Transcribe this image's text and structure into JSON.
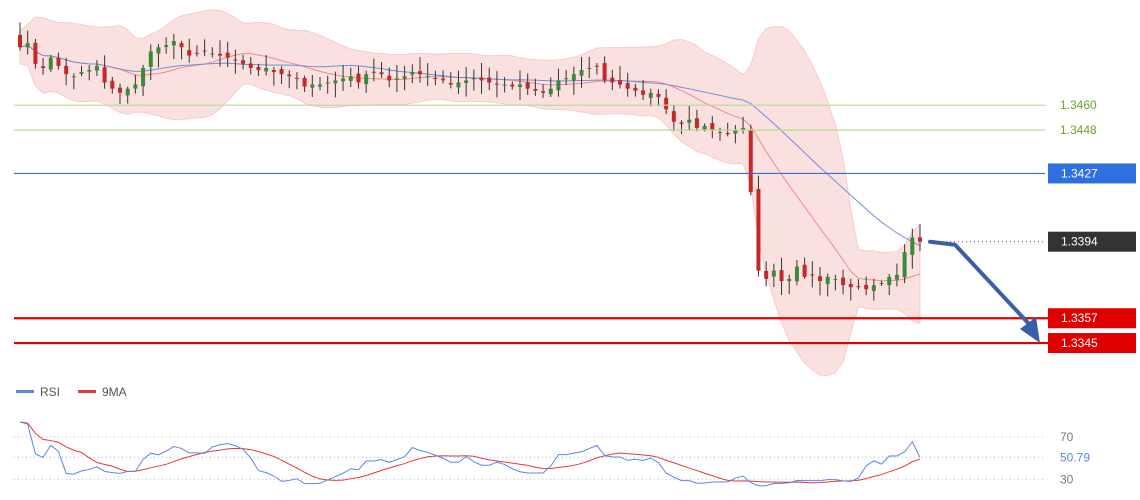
{
  "chart_data": [
    {
      "type": "candlestick",
      "y_range": [
        1.3331,
        1.3507
      ],
      "overlays": [
        "bollinger-bands",
        "moving-average-fast",
        "moving-average-slow"
      ],
      "levels": [
        {
          "value": 1.346,
          "label": "1.3460",
          "color": "#8bc34a",
          "style": "solid-thin"
        },
        {
          "value": 1.3448,
          "label": "1.3448",
          "color": "#8bc34a",
          "style": "solid-thin"
        },
        {
          "value": 1.3427,
          "label": "1.3427",
          "color": "#2f6fe0",
          "style": "solid"
        },
        {
          "value": 1.3394,
          "label": "1.3394",
          "color": "#333333",
          "style": "dotted",
          "current_price": true
        },
        {
          "value": 1.3357,
          "label": "1.3357",
          "color": "#e00000",
          "style": "solid-thick"
        },
        {
          "value": 1.3345,
          "label": "1.3345",
          "color": "#e00000",
          "style": "solid-thick"
        }
      ],
      "forecast_arrow": {
        "from": 1.3394,
        "to": 1.3345,
        "color": "#3a5ea8"
      },
      "close_prices": [
        1.3488,
        1.349,
        1.348,
        1.3478,
        1.3483,
        1.3479,
        1.3475,
        1.3474,
        1.3476,
        1.3477,
        1.3479,
        1.3471,
        1.3468,
        1.3466,
        1.3468,
        1.347,
        1.3478,
        1.3486,
        1.3488,
        1.3489,
        1.3491,
        1.3488,
        1.3484,
        1.3485,
        1.3486,
        1.3485,
        1.3484,
        1.3483,
        1.3482,
        1.348,
        1.3478,
        1.3477,
        1.3478,
        1.3476,
        1.3475,
        1.3474,
        1.3473,
        1.3469,
        1.347,
        1.347,
        1.3471,
        1.3472,
        1.3473,
        1.3474,
        1.3471,
        1.3475,
        1.3476,
        1.3475,
        1.3472,
        1.3473,
        1.3474,
        1.3476,
        1.3475,
        1.3474,
        1.3473,
        1.3472,
        1.347,
        1.3471,
        1.3472,
        1.3473,
        1.3472,
        1.3471,
        1.347,
        1.347,
        1.3469,
        1.347,
        1.3468,
        1.3467,
        1.3466,
        1.3468,
        1.3472,
        1.3473,
        1.3475,
        1.3477,
        1.3478,
        1.3479,
        1.3472,
        1.3471,
        1.347,
        1.3468,
        1.3467,
        1.3465,
        1.3466,
        1.3464,
        1.3458,
        1.3452,
        1.3451,
        1.3453,
        1.3449,
        1.345,
        1.3448,
        1.3447,
        1.3446,
        1.3448,
        1.3449,
        1.3418,
        1.338,
        1.3376,
        1.338,
        1.3375,
        1.3376,
        1.3382,
        1.3377,
        1.3378,
        1.3375,
        1.3377,
        1.3376,
        1.3373,
        1.3372,
        1.3372,
        1.3371,
        1.3373,
        1.3374,
        1.3377,
        1.3378,
        1.3389,
        1.3396,
        1.3394
      ],
      "sub_panel": {
        "legend": [
          {
            "name": "RSI",
            "color": "#5b86e5"
          },
          {
            "name": "9MA",
            "color": "#e53935"
          }
        ],
        "y_range": [
          20,
          100
        ],
        "levels": [
          {
            "value": 70,
            "label": "70"
          },
          {
            "value": 50.79,
            "label": "50.79"
          },
          {
            "value": 30,
            "label": "30"
          }
        ],
        "rsi_current": 50.79
      }
    }
  ]
}
